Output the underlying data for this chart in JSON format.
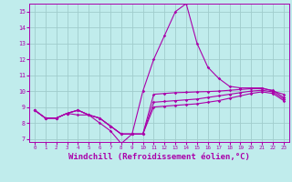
{
  "background_color": "#c0ecec",
  "grid_color": "#a0cccc",
  "line_color": "#aa00aa",
  "xlabel": "Windchill (Refroidissement éolien,°C)",
  "xlabel_fontsize": 6.5,
  "xlim": [
    -0.5,
    23.5
  ],
  "ylim": [
    6.8,
    15.5
  ],
  "xtick_labels": [
    "0",
    "1",
    "2",
    "3",
    "4",
    "5",
    "6",
    "7",
    "8",
    "9",
    "10",
    "11",
    "12",
    "13",
    "14",
    "15",
    "16",
    "17",
    "18",
    "19",
    "20",
    "21",
    "22",
    "23"
  ],
  "ytick_labels": [
    "7",
    "8",
    "9",
    "10",
    "11",
    "12",
    "13",
    "14",
    "15"
  ],
  "series": [
    [
      8.8,
      8.3,
      8.3,
      8.6,
      8.5,
      8.5,
      8.0,
      7.5,
      6.7,
      7.3,
      10.0,
      12.0,
      13.5,
      15.0,
      15.5,
      13.0,
      11.5,
      10.8,
      10.3,
      10.2,
      10.2,
      10.2,
      10.0,
      9.8
    ],
    [
      8.8,
      8.3,
      8.3,
      8.6,
      8.8,
      8.5,
      8.3,
      7.8,
      7.3,
      7.3,
      7.3,
      9.8,
      9.85,
      9.9,
      9.92,
      9.95,
      9.97,
      10.0,
      10.05,
      10.1,
      10.15,
      10.15,
      10.05,
      9.6
    ],
    [
      8.8,
      8.3,
      8.3,
      8.6,
      8.8,
      8.5,
      8.3,
      7.8,
      7.3,
      7.3,
      7.3,
      9.3,
      9.35,
      9.4,
      9.45,
      9.5,
      9.6,
      9.7,
      9.8,
      9.9,
      10.0,
      10.05,
      9.95,
      9.5
    ],
    [
      8.8,
      8.3,
      8.3,
      8.6,
      8.8,
      8.5,
      8.3,
      7.8,
      7.3,
      7.3,
      7.3,
      9.0,
      9.05,
      9.1,
      9.15,
      9.2,
      9.3,
      9.4,
      9.55,
      9.7,
      9.85,
      9.95,
      9.85,
      9.4
    ]
  ]
}
